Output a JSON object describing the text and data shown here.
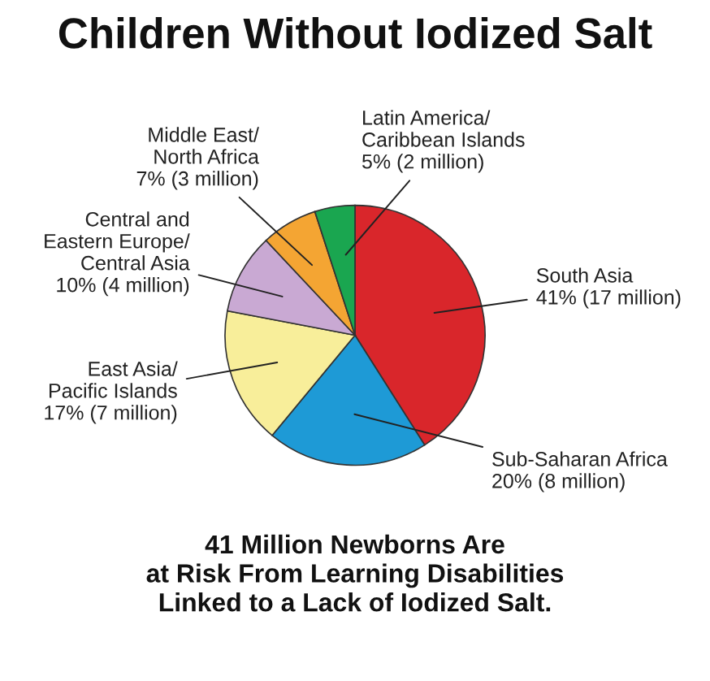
{
  "chart_data": {
    "type": "pie",
    "title": "Children Without Iodized Salt",
    "categories": [
      "South Asia",
      "Sub-Saharan Africa",
      "East Asia/\nPacific Islands",
      "Central and\nEastern Europe/\nCentral Asia",
      "Middle East/\nNorth Africa",
      "Latin America/\nCaribbean Islands"
    ],
    "values": [
      41,
      20,
      17,
      10,
      7,
      5
    ],
    "value_labels": [
      "41% (17 million)",
      "20% (8 million)",
      "17% (7 million)",
      "10% (4 million)",
      "7% (3 million)",
      "5% (2 million)"
    ],
    "colors": [
      "#d9262b",
      "#1e9ad6",
      "#f8ee9a",
      "#c9a9d3",
      "#f4a533",
      "#1aa650"
    ],
    "annotations": [
      "41 Million Newborns Are\nat Risk From Learning Disabilities\nLinked to a Lack of Iodized Salt."
    ]
  }
}
